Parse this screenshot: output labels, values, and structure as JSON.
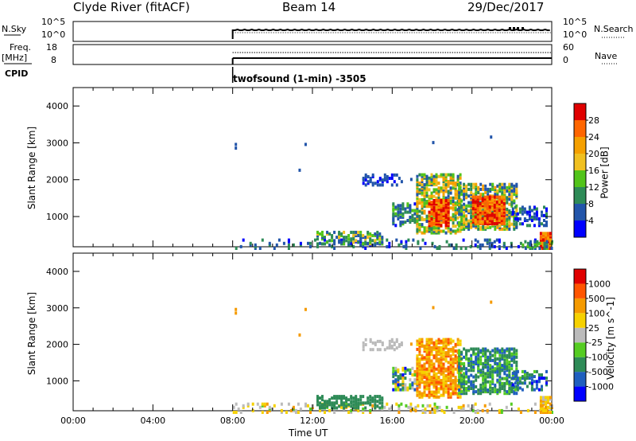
{
  "header": {
    "station": "Clyde River (fitACF)",
    "beam": "Beam 14",
    "date": "29/Dec/2017"
  },
  "top_panels": {
    "nsky_label": "N.Sky",
    "nsky_ticks": [
      "10^5",
      "10^0"
    ],
    "nsearch_label": "N.Search",
    "nsearch_ticks": [
      "10^5",
      "10^0"
    ],
    "freq_label": "Freq.",
    "freq_unit": "[MHz]",
    "freq_ticks": [
      "18",
      "8"
    ],
    "nave_label": "Nave",
    "nave_ticks": [
      "60",
      "0"
    ],
    "cpid_label": "CPID",
    "cpid_text": "twofsound (1-min)  -3505"
  },
  "colors": {
    "power_scale": [
      "#0000ff",
      "#2255aa",
      "#2e8b57",
      "#52c41a",
      "#f0c020",
      "#f5a000",
      "#ff6600",
      "#e00000"
    ],
    "velocity_scale": [
      "#0000ff",
      "#1f5fbf",
      "#2e8b57",
      "#55cc22",
      "#bbbbbb",
      "#f6d100",
      "#f59a00",
      "#ff5500",
      "#e00000"
    ]
  },
  "chart_data": [
    {
      "type": "heatmap",
      "name": "power",
      "ylabel": "Slant Range [km]",
      "yticks": [
        1000,
        2000,
        3000,
        4000
      ],
      "ylim": [
        180,
        4500
      ],
      "xlim": [
        0,
        24
      ],
      "data_start_hour": 8,
      "colorbar": {
        "label": "Power [dB]",
        "ticks": [
          4,
          8,
          12,
          16,
          20,
          24,
          28
        ],
        "range": [
          0,
          32
        ]
      },
      "regions": [
        {
          "t0": 8.0,
          "t1": 24.0,
          "r0": 180,
          "r1": 420,
          "value_range": [
            2,
            12
          ],
          "density": 0.18
        },
        {
          "t0": 12.2,
          "t1": 15.5,
          "r0": 300,
          "r1": 650,
          "value_range": [
            4,
            18
          ],
          "density": 0.45
        },
        {
          "t0": 16.0,
          "t1": 17.3,
          "r0": 800,
          "r1": 1400,
          "value_range": [
            3,
            14
          ],
          "density": 0.5
        },
        {
          "t0": 17.2,
          "t1": 19.4,
          "r0": 600,
          "r1": 2200,
          "value_range": [
            6,
            24
          ],
          "density": 0.55
        },
        {
          "t0": 17.8,
          "t1": 18.8,
          "r0": 800,
          "r1": 1500,
          "value_range": [
            22,
            31
          ],
          "density": 0.85
        },
        {
          "t0": 19.3,
          "t1": 22.3,
          "r0": 700,
          "r1": 1950,
          "value_range": [
            4,
            22
          ],
          "density": 0.55
        },
        {
          "t0": 20.0,
          "t1": 21.6,
          "r0": 850,
          "r1": 1600,
          "value_range": [
            22,
            31
          ],
          "density": 0.8
        },
        {
          "t0": 14.5,
          "t1": 16.5,
          "r0": 1900,
          "r1": 2200,
          "value_range": [
            2,
            8
          ],
          "density": 0.3
        },
        {
          "t0": 22.0,
          "t1": 23.7,
          "r0": 800,
          "r1": 1300,
          "value_range": [
            2,
            10
          ],
          "density": 0.4
        },
        {
          "t0": 23.4,
          "t1": 24.0,
          "r0": 180,
          "r1": 600,
          "value_range": [
            20,
            31
          ],
          "density": 0.9
        },
        {
          "t0": 22.5,
          "t1": 24.0,
          "r0": 180,
          "r1": 400,
          "value_range": [
            4,
            16
          ],
          "density": 0.5
        }
      ]
    },
    {
      "type": "heatmap",
      "name": "velocity",
      "ylabel": "Slant Range [km]",
      "yticks": [
        1000,
        2000,
        3000,
        4000
      ],
      "ylim": [
        180,
        4500
      ],
      "xlim": [
        0,
        24
      ],
      "data_start_hour": 8,
      "colorbar": {
        "label": "Velocity [m s^-1]",
        "ticks": [
          "1000",
          "500",
          "100",
          "25",
          "-25",
          "-100",
          "-500",
          "-1000"
        ]
      },
      "regions": [
        {
          "t0": 8.0,
          "t1": 24.0,
          "r0": 180,
          "r1": 420,
          "value_range": [
            3,
            6
          ],
          "density": 0.2
        },
        {
          "t0": 12.2,
          "t1": 15.5,
          "r0": 300,
          "r1": 650,
          "value_range": [
            2,
            2
          ],
          "density": 0.5
        },
        {
          "t0": 16.0,
          "t1": 17.3,
          "r0": 800,
          "r1": 1400,
          "value_range": [
            0,
            6
          ],
          "density": 0.5
        },
        {
          "t0": 17.2,
          "t1": 19.4,
          "r0": 600,
          "r1": 2200,
          "value_range": [
            5,
            7
          ],
          "density": 0.6
        },
        {
          "t0": 19.3,
          "t1": 22.3,
          "r0": 700,
          "r1": 1950,
          "value_range": [
            1,
            3
          ],
          "density": 0.55
        },
        {
          "t0": 14.5,
          "t1": 16.5,
          "r0": 1900,
          "r1": 2200,
          "value_range": [
            4,
            4
          ],
          "density": 0.3
        },
        {
          "t0": 22.0,
          "t1": 23.7,
          "r0": 800,
          "r1": 1300,
          "value_range": [
            0,
            3
          ],
          "density": 0.4
        },
        {
          "t0": 23.4,
          "t1": 24.0,
          "r0": 180,
          "r1": 600,
          "value_range": [
            4,
            6
          ],
          "density": 0.7
        }
      ]
    }
  ],
  "time_axis": {
    "ticks": [
      "00:00",
      "04:00",
      "08:00",
      "12:00",
      "16:00",
      "20:00",
      "00:00"
    ],
    "label": "Time UT"
  }
}
